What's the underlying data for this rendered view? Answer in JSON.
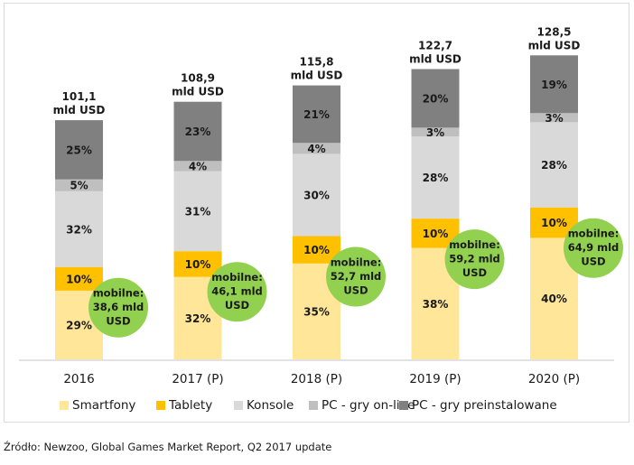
{
  "chart_data": {
    "type": "bar",
    "stacked": true,
    "percent_of_total": true,
    "title": "",
    "xlabel": "",
    "ylabel": "",
    "unit": "mld USD",
    "categories": [
      "2016",
      "2017 (P)",
      "2018 (P)",
      "2019 (P)",
      "2020 (P)"
    ],
    "totals": [
      101.1,
      108.9,
      115.8,
      122.7,
      128.5
    ],
    "total_labels": [
      [
        "101,1",
        "mld USD"
      ],
      [
        "108,9",
        "mld USD"
      ],
      [
        "115,8",
        "mld USD"
      ],
      [
        "122,7",
        "mld USD"
      ],
      [
        "128,5",
        "mld USD"
      ]
    ],
    "series": [
      {
        "name": "Smartfony",
        "color": "#FFE699",
        "values": [
          29,
          32,
          35,
          38,
          40
        ],
        "labels": [
          "29%",
          "32%",
          "35%",
          "38%",
          "40%"
        ]
      },
      {
        "name": "Tablety",
        "color": "#FFC000",
        "values": [
          10,
          10,
          10,
          10,
          10
        ],
        "labels": [
          "10%",
          "10%",
          "10%",
          "10%",
          "10%"
        ]
      },
      {
        "name": "Konsole",
        "color": "#D9D9D9",
        "values": [
          32,
          31,
          30,
          28,
          28
        ],
        "labels": [
          "32%",
          "31%",
          "30%",
          "28%",
          "28%"
        ]
      },
      {
        "name": "PC - gry on-line",
        "color": "#BFBFBF",
        "values": [
          5,
          4,
          4,
          3,
          3
        ],
        "labels": [
          "5%",
          "4%",
          "4%",
          "3%",
          "3%"
        ]
      },
      {
        "name": "PC - gry preinstalowane",
        "color": "#808080",
        "values": [
          25,
          23,
          21,
          20,
          19
        ],
        "labels": [
          "25%",
          "23%",
          "21%",
          "20%",
          "19%"
        ]
      }
    ],
    "annotations": {
      "mobile_callouts": [
        [
          "mobilne:",
          "38,6 mld",
          "USD"
        ],
        [
          "mobilne:",
          "46,1 mld",
          "USD"
        ],
        [
          "mobilne:",
          "52,7 mld",
          "USD"
        ],
        [
          "mobilne:",
          "59,2 mld",
          "USD"
        ],
        [
          "mobilne:",
          "64,9 mld",
          "USD"
        ]
      ],
      "mobile_values": [
        38.6,
        46.1,
        52.7,
        59.2,
        64.9
      ],
      "callout_color": "#92D050"
    },
    "ylim": [
      0,
      140
    ],
    "grid": false,
    "legend": "bottom"
  },
  "source": "Źródło: Newzoo, Global Games Market Report, Q2 2017 update"
}
